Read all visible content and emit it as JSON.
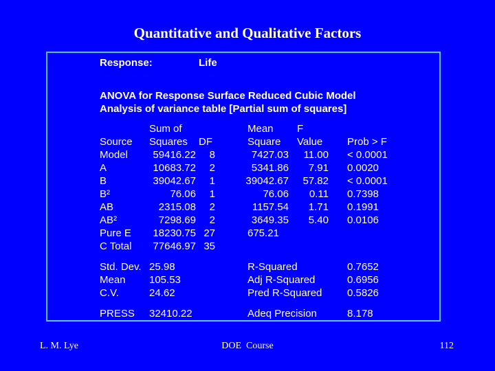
{
  "title": "Quantitative and Qualitative Factors",
  "response_label": "Response:",
  "response_value": "Life",
  "anova_title": "ANOVA for Response Surface Reduced Cubic Model",
  "anova_subtitle": "Analysis of variance table [Partial sum of squares]",
  "headers": {
    "source": "Source",
    "sum_sq_line1": "Sum of",
    "sum_sq_line2": "Squares",
    "df": "DF",
    "mean_sq_line1": "Mean",
    "mean_sq_line2": "Square",
    "f_line1": "F",
    "f_line2": "Value",
    "prob": "Prob > F"
  },
  "rows": [
    {
      "source": "Model",
      "ss": "59416.22",
      "df": "8",
      "ms": "7427.03",
      "f": "11.00",
      "p": "< 0.0001"
    },
    {
      "source": "A",
      "ss": "10683.72",
      "df": "2",
      "ms": "5341.86",
      "f": "7.91",
      "p": "0.0020"
    },
    {
      "source": "B",
      "ss": "39042.67",
      "df": "1",
      "ms": "39042.67",
      "f": "57.82",
      "p": "< 0.0001"
    },
    {
      "source": "B²",
      "ss": "76.06",
      "df": "1",
      "ms": "76.06",
      "f": "0.11",
      "p": "0.7398"
    },
    {
      "source": "AB",
      "ss": "2315.08",
      "df": "2",
      "ms": "1157.54",
      "f": "1.71",
      "p": "0.1991"
    },
    {
      "source": "AB²",
      "ss": "7298.69",
      "df": "2",
      "ms": "3649.35",
      "f": "5.40",
      "p": "0.0106"
    },
    {
      "source": "Pure E",
      "ss": "18230.75",
      "df": "27",
      "ms": "675.21",
      "f": "",
      "p": ""
    },
    {
      "source": "C Total",
      "ss": "77646.97",
      "df": "35",
      "ms": "",
      "f": "",
      "p": ""
    }
  ],
  "stats_left": [
    {
      "label": "Std. Dev.",
      "value": "25.98"
    },
    {
      "label": "Mean",
      "value": "105.53"
    },
    {
      "label": "C.V.",
      "value": "24.62"
    }
  ],
  "stats_right": [
    {
      "label": "R-Squared",
      "value": "0.7652"
    },
    {
      "label": "Adj R-Squared",
      "value": "0.6956"
    },
    {
      "label": "Pred R-Squared",
      "value": "0.5826"
    }
  ],
  "press_label": "PRESS",
  "press_value": "32410.22",
  "precision_label": "Adeq Precision",
  "precision_value": "8.178",
  "footer": {
    "author": "L. M. Lye",
    "course": "DOE  Course",
    "page": "112"
  },
  "colors": {
    "background": "#0000ff",
    "panel_border": "#5cc6e8",
    "text": "#ffffff"
  }
}
